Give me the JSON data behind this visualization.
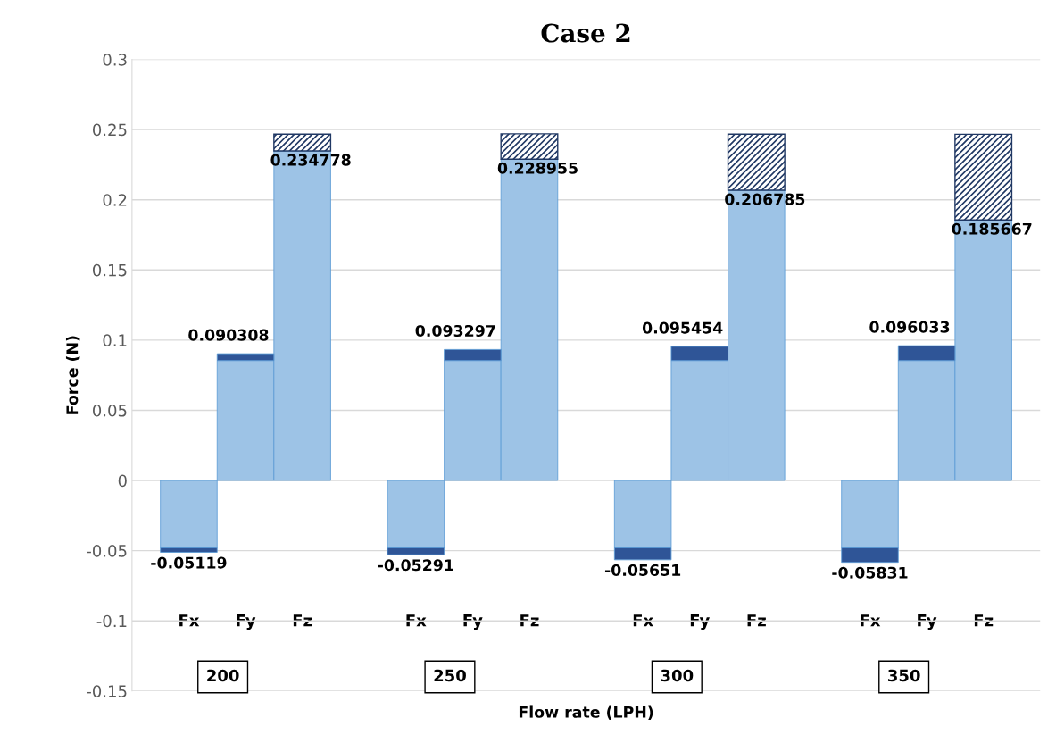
{
  "chart_data": {
    "type": "bar",
    "title": "Case 2",
    "xlabel": "Flow rate (LPH)",
    "ylabel": "Force (N)",
    "categories": [
      "Fx",
      "Fy",
      "Fz",
      null,
      "Fx",
      "Fy",
      "Fz",
      null,
      "Fx",
      "Fy",
      "Fz",
      null,
      "Fx",
      "Fy",
      "Fz"
    ],
    "stacked": true,
    "series": [
      {
        "color": "#9dc3e6",
        "values": [
          -0.048,
          0.0855,
          0.234778,
          null,
          -0.048,
          0.0855,
          0.228955,
          null,
          -0.048,
          0.0855,
          0.206785,
          null,
          -0.048,
          0.0855,
          0.185667
        ],
        "value_labels": [
          null,
          null,
          "0.234778",
          null,
          null,
          null,
          "0.228955",
          null,
          null,
          null,
          "0.206785",
          null,
          null,
          null,
          "0.185667"
        ]
      },
      {
        "color": "#2f5597",
        "values": [
          -0.00319,
          0.004808,
          null,
          null,
          -0.00491,
          0.007797,
          null,
          null,
          -0.00851,
          0.009954,
          null,
          null,
          -0.01031,
          0.010533,
          null
        ]
      },
      {
        "color": "#203864",
        "values": [
          null,
          null,
          0.012,
          null,
          null,
          null,
          0.018,
          null,
          null,
          null,
          0.04,
          null,
          null,
          null,
          0.061
        ]
      }
    ],
    "totals": [
      "-0.05119",
      "0.090308",
      null,
      null,
      "-0.05291",
      "0.093297",
      null,
      null,
      "-0.05651",
      "0.095454",
      null,
      null,
      "-0.05831",
      "0.096033",
      null
    ],
    "annotations": [
      "200",
      "250",
      "300",
      "350"
    ],
    "ylim": [
      -0.15,
      0.3
    ],
    "yticks": [
      -0.15,
      -0.1,
      -0.05,
      0,
      0.05,
      0.1,
      0.15,
      0.2,
      0.25,
      0.3
    ],
    "grid": "y",
    "legend": false
  }
}
